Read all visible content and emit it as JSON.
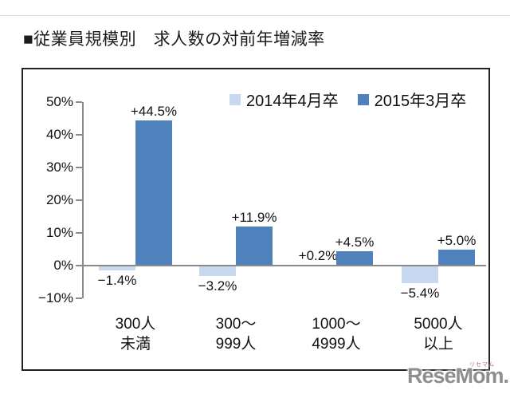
{
  "page": {
    "title": "■従業員規模別　求人数の対前年増減率"
  },
  "chart_data": {
    "type": "bar",
    "title": "従業員規模別 求人数の対前年増減率",
    "categories": [
      "300人\n未満",
      "300〜\n999人",
      "1000〜\n4999人",
      "5000人\n以上"
    ],
    "series": [
      {
        "name": "2014年4月卒",
        "color": "#c6d9f1",
        "values": [
          -1.4,
          -3.2,
          0.2,
          -5.4
        ],
        "display_labels": [
          "−1.4%",
          "−3.2%",
          "+0.2%",
          "−5.4%"
        ]
      },
      {
        "name": "2015年3月卒",
        "color": "#4f81bd",
        "values": [
          44.5,
          11.9,
          4.5,
          5.0
        ],
        "display_labels": [
          "+44.5%",
          "+11.9%",
          "+4.5%",
          "+5.0%"
        ]
      }
    ],
    "ylabel": "",
    "xlabel": "",
    "ylim": [
      -10,
      50
    ],
    "ytick_step": 10,
    "ytick_labels": [
      "50%",
      "40%",
      "30%",
      "20%",
      "10%",
      "0%",
      "−10%"
    ],
    "grid": false,
    "legend_position": "top-right",
    "axis_color": "#8a8a8a"
  },
  "watermark": {
    "text": "ReseMom.",
    "ruby": "リセマム"
  }
}
